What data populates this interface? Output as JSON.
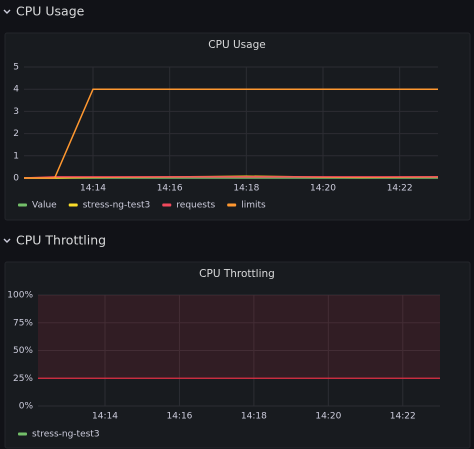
{
  "dashboard_rows": [
    {
      "title": "CPU Usage"
    },
    {
      "title": "CPU Throttling"
    }
  ],
  "chart_data": [
    {
      "type": "line",
      "title": "CPU Usage",
      "x": [
        852.2,
        853,
        854,
        855,
        856,
        857,
        858,
        859,
        860,
        861,
        862,
        863
      ],
      "xlim": [
        852.2,
        863
      ],
      "xticks": [
        {
          "value": 854,
          "label": "14:14"
        },
        {
          "value": 856,
          "label": "14:16"
        },
        {
          "value": 858,
          "label": "14:18"
        },
        {
          "value": 860,
          "label": "14:20"
        },
        {
          "value": 862,
          "label": "14:22"
        }
      ],
      "ylim": [
        0,
        5
      ],
      "yticks": [
        0,
        1,
        2,
        3,
        4,
        5
      ],
      "grid": true,
      "series": [
        {
          "name": "Value",
          "color": "#73bf69",
          "values": [
            0,
            0,
            0,
            0,
            0,
            0,
            0,
            0,
            0,
            0,
            0,
            0
          ]
        },
        {
          "name": "stress-ng-test3",
          "color": "#fade2a",
          "values": [
            0,
            0,
            0.03,
            0.04,
            0.05,
            0.06,
            0.08,
            0.06,
            0.04,
            0.03,
            0.04,
            0.05
          ]
        },
        {
          "name": "requests",
          "color": "#f2495c",
          "values": [
            0,
            0.05,
            0.05,
            0.05,
            0.05,
            0.05,
            0.05,
            0.05,
            0.05,
            0.05,
            0.05,
            0.05
          ]
        },
        {
          "name": "limits",
          "color": "#ff9830",
          "values": [
            0,
            0,
            4,
            4,
            4,
            4,
            4,
            4,
            4,
            4,
            4,
            4
          ]
        }
      ]
    },
    {
      "type": "line",
      "title": "CPU Throttling",
      "xlim": [
        852.2,
        863
      ],
      "xticks": [
        {
          "value": 854,
          "label": "14:14"
        },
        {
          "value": 856,
          "label": "14:16"
        },
        {
          "value": 858,
          "label": "14:18"
        },
        {
          "value": 860,
          "label": "14:20"
        },
        {
          "value": 862,
          "label": "14:22"
        }
      ],
      "ylim": [
        0,
        100
      ],
      "yticks": [
        {
          "value": 0,
          "label": "0%"
        },
        {
          "value": 25,
          "label": "25%"
        },
        {
          "value": 50,
          "label": "50%"
        },
        {
          "value": 75,
          "label": "75%"
        },
        {
          "value": 100,
          "label": "100%"
        }
      ],
      "grid": true,
      "threshold": {
        "value": 25,
        "color": "#e02f44"
      },
      "series": [
        {
          "name": "stress-ng-test3",
          "color": "#73bf69",
          "values": []
        }
      ]
    }
  ]
}
